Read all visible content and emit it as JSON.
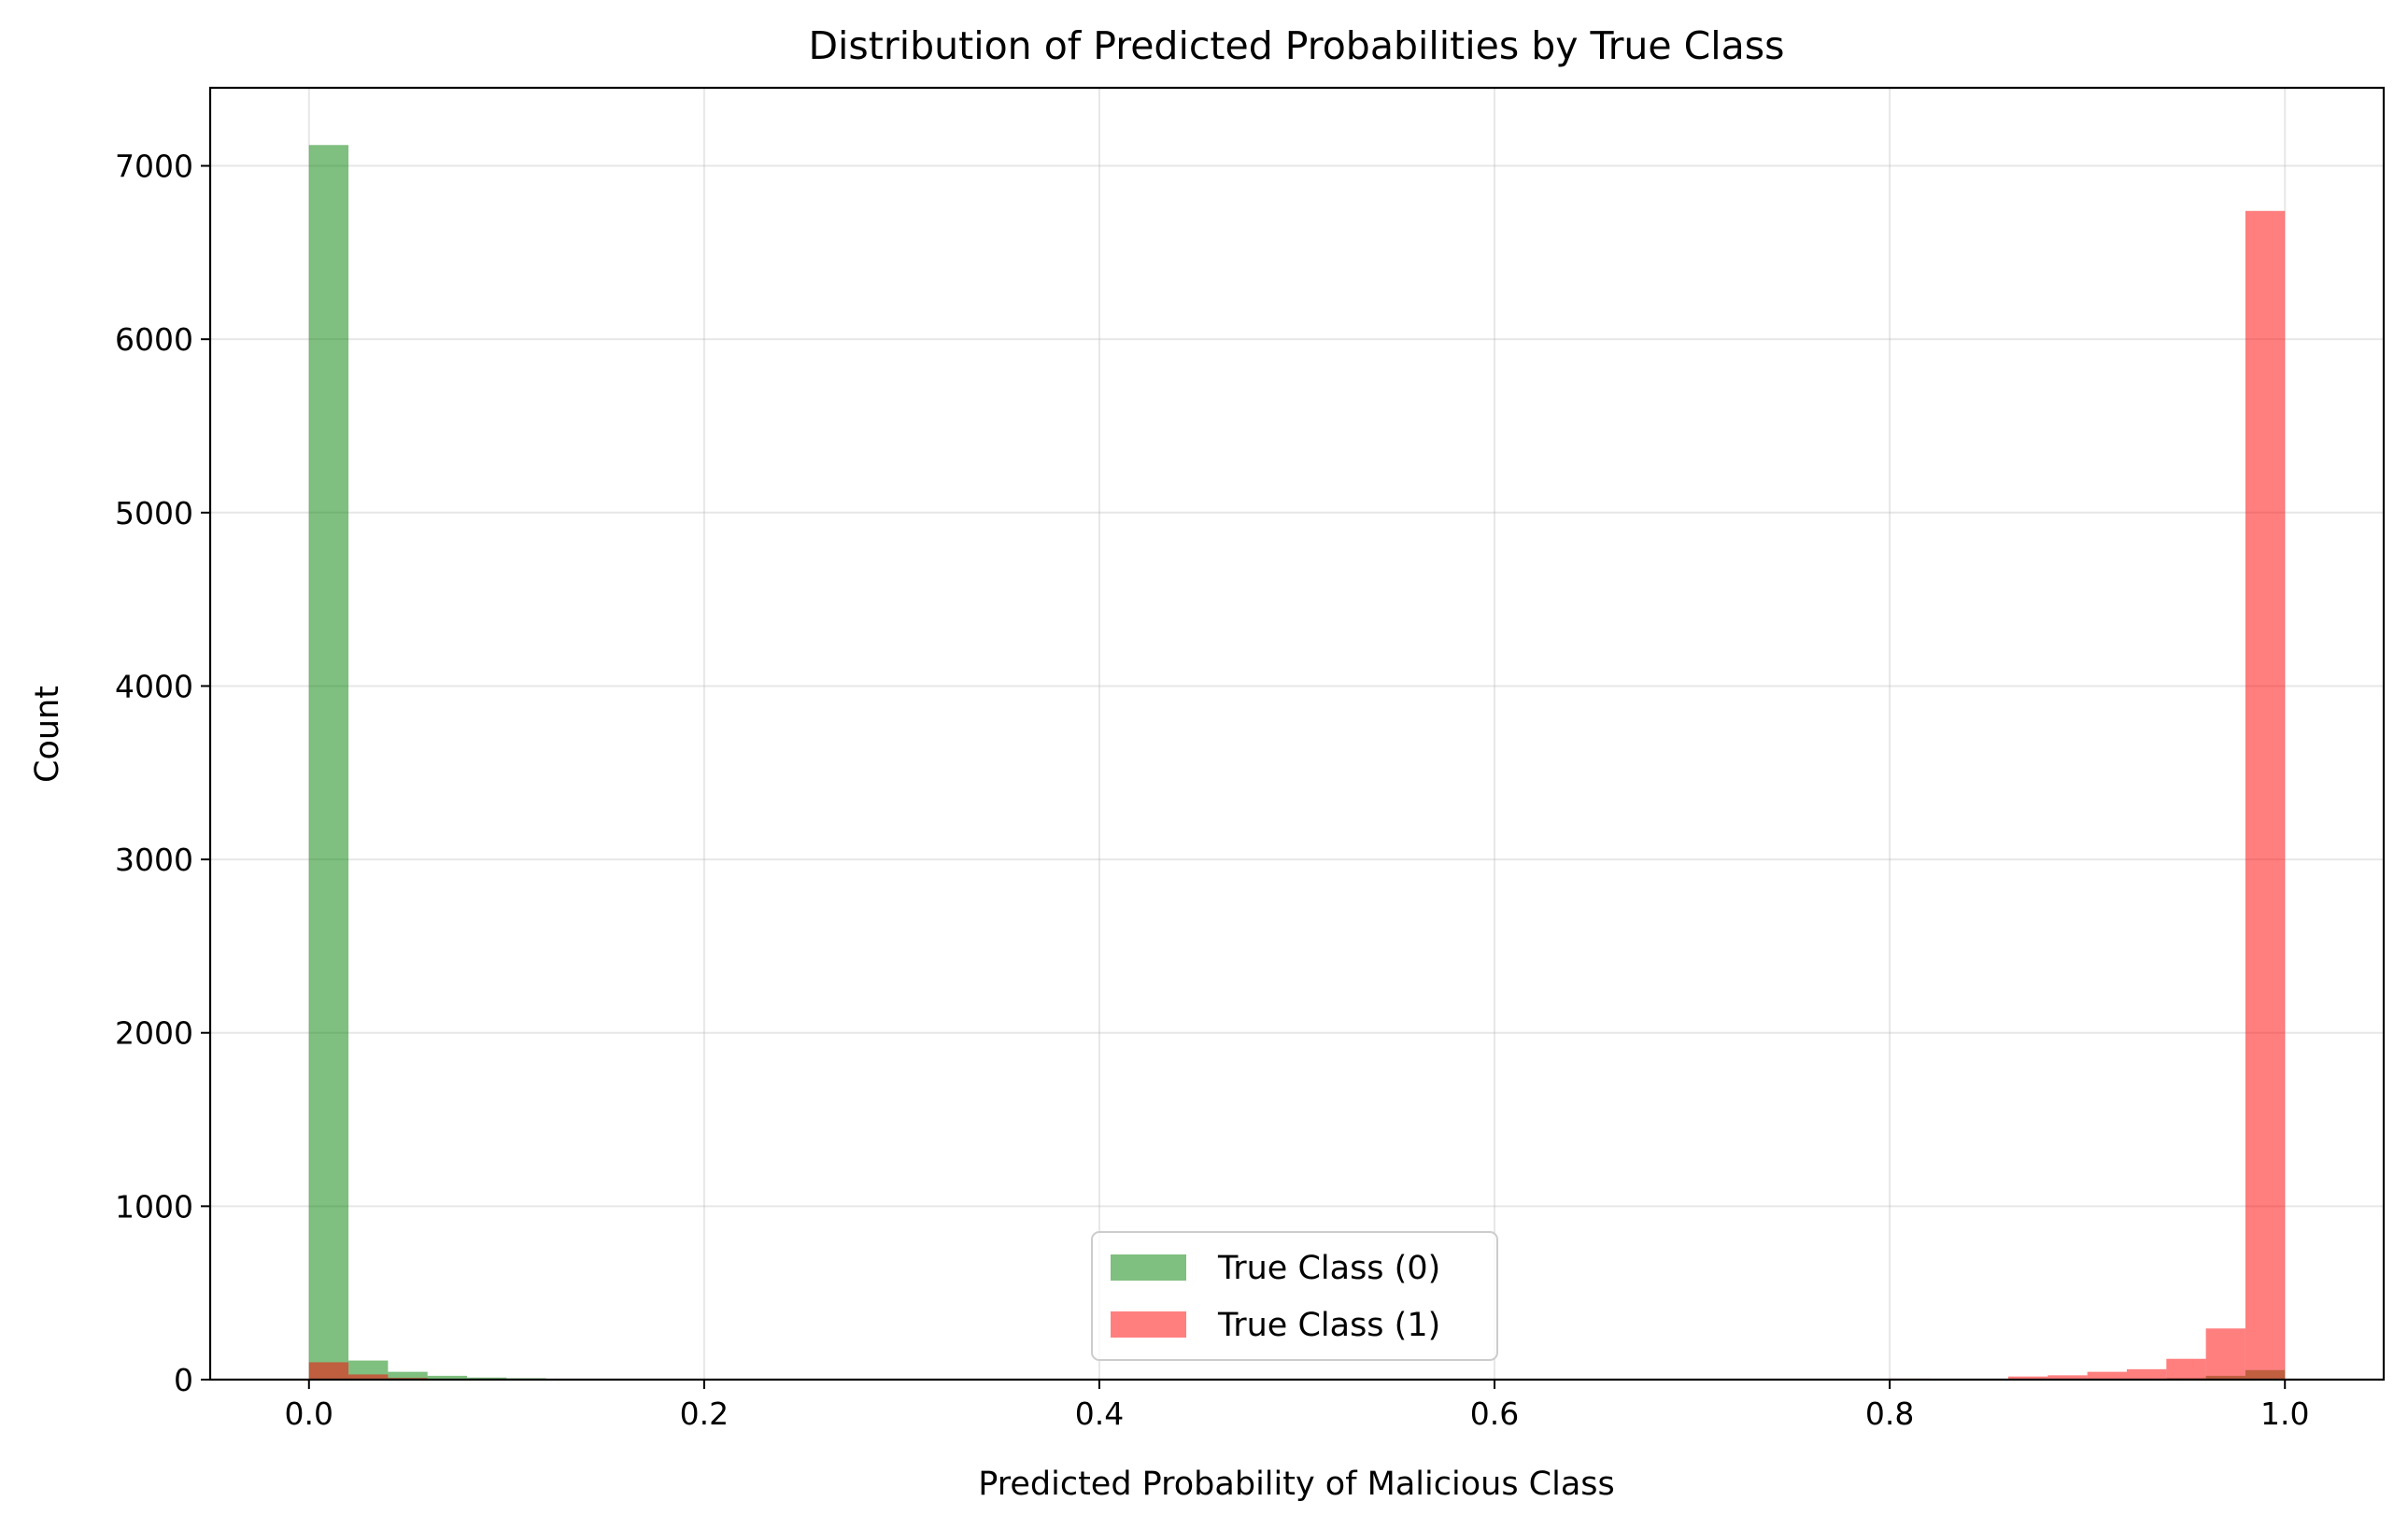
{
  "chart_data": {
    "type": "bar",
    "title": "Distribution of Predicted Probabilities by True Class",
    "xlabel": "Predicted Probability of Malicious Class",
    "ylabel": "Count",
    "xlim": [
      -0.05,
      1.05
    ],
    "ylim": [
      0,
      7450
    ],
    "xticks": [
      0.0,
      0.2,
      0.4,
      0.6,
      0.8,
      1.0
    ],
    "xtick_labels": [
      "0.0",
      "0.2",
      "0.4",
      "0.6",
      "0.8",
      "1.0"
    ],
    "yticks": [
      0,
      1000,
      2000,
      3000,
      4000,
      5000,
      6000,
      7000
    ],
    "ytick_labels": [
      "0",
      "1000",
      "2000",
      "3000",
      "4000",
      "5000",
      "6000",
      "7000"
    ],
    "grid": true,
    "legend_position": "lower center",
    "bin_width": 0.02,
    "series": [
      {
        "name": "True Class (0)",
        "color": "#008000",
        "opacity": 0.5,
        "bins": [
          {
            "x0": 0.0,
            "count": 7120
          },
          {
            "x0": 0.02,
            "count": 110
          },
          {
            "x0": 0.04,
            "count": 45
          },
          {
            "x0": 0.06,
            "count": 22
          },
          {
            "x0": 0.08,
            "count": 12
          },
          {
            "x0": 0.1,
            "count": 8
          },
          {
            "x0": 0.22,
            "count": 5
          },
          {
            "x0": 0.94,
            "count": 8
          },
          {
            "x0": 0.96,
            "count": 22
          },
          {
            "x0": 0.98,
            "count": 55
          }
        ]
      },
      {
        "name": "True Class (1)",
        "color": "#ff0000",
        "opacity": 0.5,
        "bins": [
          {
            "x0": 0.0,
            "count": 100
          },
          {
            "x0": 0.02,
            "count": 30
          },
          {
            "x0": 0.04,
            "count": 10
          },
          {
            "x0": 0.58,
            "count": 4
          },
          {
            "x0": 0.76,
            "count": 5
          },
          {
            "x0": 0.8,
            "count": 6
          },
          {
            "x0": 0.86,
            "count": 18
          },
          {
            "x0": 0.88,
            "count": 25
          },
          {
            "x0": 0.9,
            "count": 45
          },
          {
            "x0": 0.92,
            "count": 60
          },
          {
            "x0": 0.94,
            "count": 120
          },
          {
            "x0": 0.96,
            "count": 295
          },
          {
            "x0": 0.98,
            "count": 6740
          }
        ]
      }
    ]
  }
}
